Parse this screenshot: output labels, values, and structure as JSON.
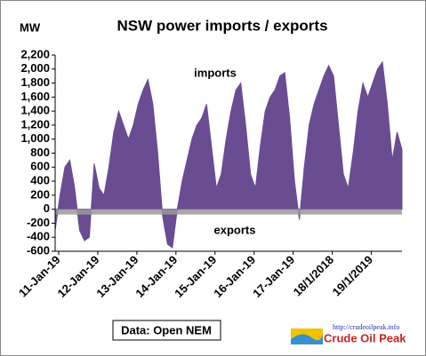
{
  "chart_data": {
    "type": "area",
    "title": "NSW power imports / exports",
    "y_label": "MW",
    "annotations": [
      "imports",
      "exports"
    ],
    "source": "Data: Open NEM",
    "logo_url": "http://crudeoilpeak.info",
    "logo_name": "Crude Oil Peak",
    "color": "#6a4c93",
    "grid": false,
    "ylim": [
      -600,
      2200
    ],
    "yticks": [
      {
        "value": 2200,
        "label": "2,200"
      },
      {
        "value": 2000,
        "label": "2,000"
      },
      {
        "value": 1800,
        "label": "1,800"
      },
      {
        "value": 1600,
        "label": "1,600"
      },
      {
        "value": 1400,
        "label": "1,400"
      },
      {
        "value": 1200,
        "label": "1,200"
      },
      {
        "value": 1000,
        "label": "1,000"
      },
      800,
      600,
      400,
      200,
      0,
      -200,
      -400,
      -600
    ],
    "categories": [
      "11-Jan-19",
      null,
      null,
      null,
      null,
      null,
      null,
      null,
      "12-Jan-19",
      null,
      null,
      null,
      null,
      null,
      null,
      null,
      "13-Jan-19",
      null,
      null,
      null,
      null,
      null,
      null,
      null,
      "14-Jan-19",
      null,
      null,
      null,
      null,
      null,
      null,
      null,
      "15-Jan-19",
      null,
      null,
      null,
      null,
      null,
      null,
      null,
      "16-Jan-19",
      null,
      null,
      null,
      null,
      null,
      null,
      null,
      "17-Jan-19",
      null,
      null,
      null,
      null,
      null,
      null,
      null,
      "18/1/2018",
      null,
      null,
      null,
      null,
      null,
      null,
      null,
      "19/1/2019",
      null,
      null,
      null,
      null,
      null,
      null,
      null
    ],
    "values": [
      -300,
      200,
      600,
      700,
      300,
      -300,
      -450,
      -400,
      650,
      300,
      200,
      600,
      1100,
      1400,
      1200,
      1000,
      1200,
      1500,
      1700,
      1850,
      1500,
      800,
      -100,
      -500,
      -550,
      0,
      400,
      700,
      1000,
      1200,
      1300,
      1500,
      900,
      300,
      500,
      1000,
      1400,
      1700,
      1800,
      1200,
      500,
      300,
      900,
      1400,
      1600,
      1700,
      1900,
      1950,
      1300,
      400,
      -150,
      600,
      1200,
      1500,
      1700,
      1900,
      2050,
      1900,
      1200,
      500,
      300,
      800,
      1400,
      1800,
      1600,
      1800,
      2000,
      2100,
      1500,
      700,
      1100,
      850
    ]
  }
}
